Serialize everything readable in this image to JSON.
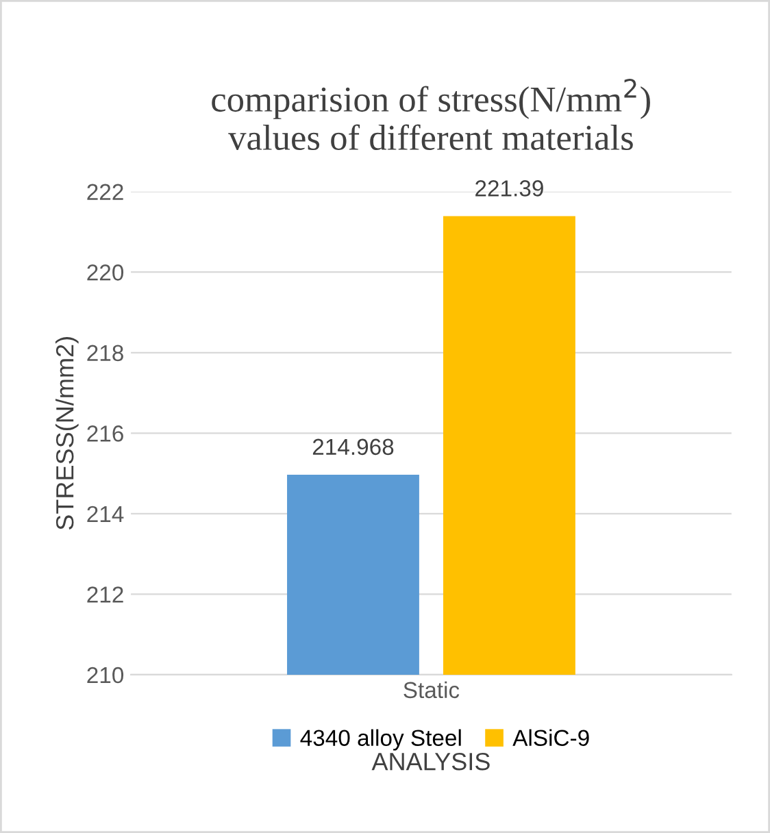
{
  "chart_data": {
    "type": "bar",
    "title": "comparision of stress(N/mm$^{2}$)\nvalues of different materials",
    "xlabel": "ANALYSIS",
    "ylabel": "STRESS(N/mm2)",
    "categories": [
      "Static"
    ],
    "series": [
      {
        "name": "4340 alloy Steel",
        "color": "#5b9bd5",
        "values": [
          214.968
        ]
      },
      {
        "name": "AlSiC-9",
        "color": "#ffc000",
        "values": [
          221.39
        ]
      }
    ],
    "ylim": [
      210,
      222
    ],
    "yticks": [
      210,
      212,
      214,
      216,
      218,
      220,
      222
    ],
    "grid": "y",
    "legend": "bottom",
    "data_labels": true
  }
}
